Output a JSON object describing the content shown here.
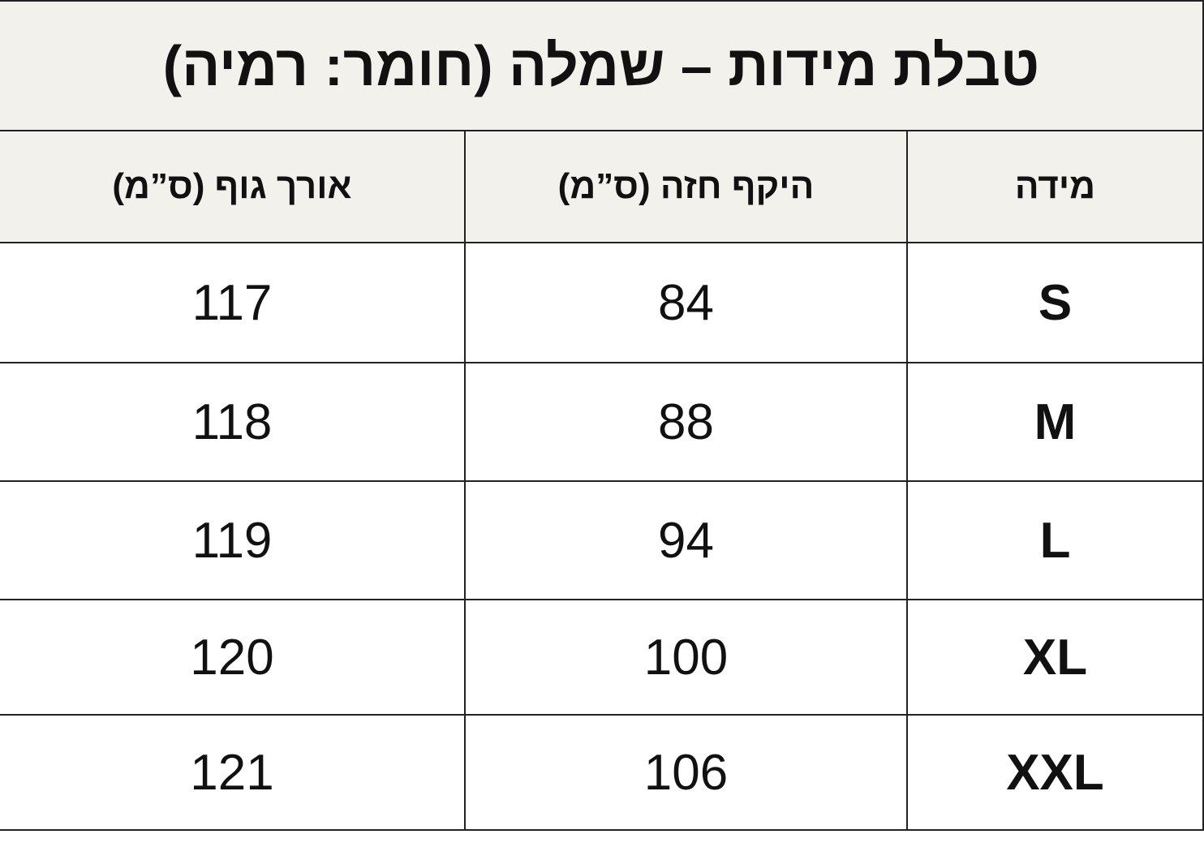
{
  "table": {
    "title": "טבלת מידות – שמלה (חומר: רמיה)",
    "header": [
      "מידה",
      "היקף חזה (ס”מ)",
      "אורך גוף (ס”מ)"
    ],
    "rows": [
      [
        "S",
        "84",
        "117"
      ],
      [
        "M",
        "88",
        "118"
      ],
      [
        "L",
        "94",
        "119"
      ],
      [
        "XL",
        "100",
        "120"
      ],
      [
        "XXL",
        "106",
        "121"
      ]
    ]
  }
}
